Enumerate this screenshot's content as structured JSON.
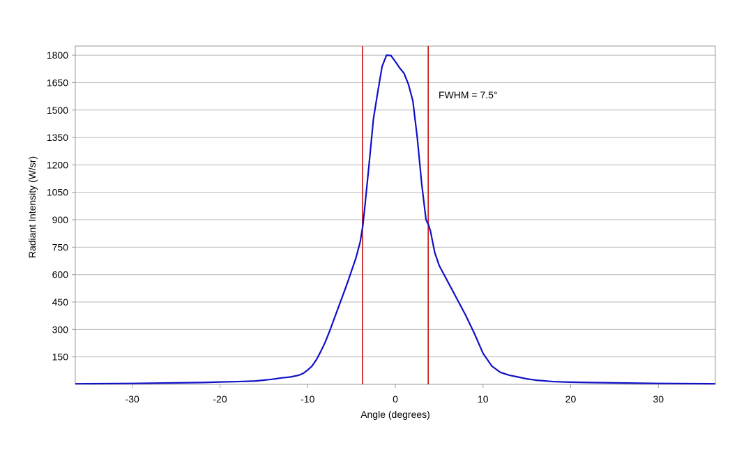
{
  "chart_data": {
    "type": "line",
    "xlabel": "Angle (degrees)",
    "ylabel": "Radiant Intensity (W/sr)",
    "xlim": [
      -36.5,
      36.5
    ],
    "ylim": [
      0,
      1850
    ],
    "x_ticks": [
      -30,
      -20,
      -10,
      0,
      10,
      20,
      30
    ],
    "y_ticks": [
      150,
      300,
      450,
      600,
      750,
      900,
      1050,
      1200,
      1350,
      1500,
      1650,
      1800
    ],
    "grid": "horizontal",
    "series_color": "#1010c8",
    "marker_color": "#cc1111",
    "series": [
      {
        "x": [
          -36.5,
          -30,
          -25,
          -22,
          -20,
          -18,
          -16,
          -15,
          -14,
          -13,
          -12,
          -11,
          -10.5,
          -10,
          -9.5,
          -9,
          -8.5,
          -8,
          -7.5,
          -7,
          -6.5,
          -6,
          -5.5,
          -5,
          -4.5,
          -4,
          -3.7,
          -3.5,
          -3,
          -2.5,
          -2,
          -1.5,
          -1,
          -0.5,
          0,
          0.5,
          1,
          1.5,
          2,
          2.5,
          3,
          3.5,
          3.8,
          4,
          4.5,
          5,
          6,
          7,
          8,
          9,
          10,
          11,
          12,
          13,
          14,
          15,
          16,
          18,
          20,
          22,
          25,
          30,
          36.5
        ],
        "y": [
          3,
          5,
          8,
          10,
          13,
          15,
          18,
          23,
          28,
          35,
          40,
          50,
          60,
          78,
          100,
          135,
          180,
          230,
          290,
          355,
          420,
          485,
          550,
          620,
          690,
          780,
          870,
          960,
          1200,
          1450,
          1600,
          1740,
          1800,
          1798,
          1765,
          1730,
          1700,
          1640,
          1550,
          1350,
          1100,
          900,
          870,
          840,
          720,
          650,
          560,
          470,
          380,
          280,
          170,
          100,
          65,
          50,
          40,
          30,
          23,
          15,
          12,
          10,
          8,
          5,
          3
        ]
      }
    ],
    "markers": [
      {
        "x": -3.75
      },
      {
        "x": 3.75
      }
    ],
    "annotation": "FWHM = 7.5°"
  }
}
